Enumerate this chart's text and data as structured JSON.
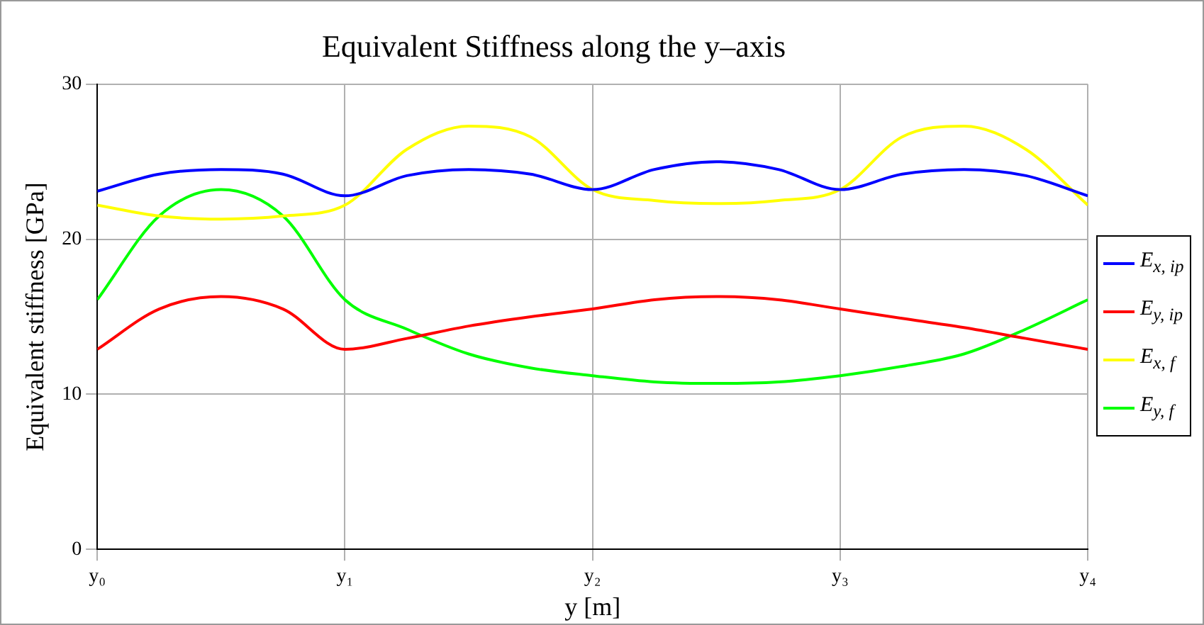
{
  "chart_data": {
    "type": "line",
    "title": "Equivalent Stiffness along the y–axis",
    "xlabel": "y [m]",
    "ylabel": "Equivalent stiffness [GPa]",
    "categories": [
      "y₀",
      null,
      null,
      null,
      "y₁",
      null,
      null,
      null,
      "y₂",
      null,
      null,
      null,
      "y₃",
      null,
      null,
      null,
      "y₄"
    ],
    "ylim": [
      0,
      30
    ],
    "yticks": [
      0,
      10,
      20,
      30
    ],
    "grid": true,
    "legend": "right",
    "marker": "none",
    "line_style": "solid",
    "series": [
      {
        "name": "E$_{x, ip}$",
        "color": "#0000ff",
        "values": [
          23.1,
          24.2,
          24.5,
          24.2,
          22.8,
          24.1,
          24.5,
          24.2,
          23.2,
          24.5,
          25.0,
          24.5,
          23.2,
          24.2,
          24.5,
          24.1,
          22.8
        ]
      },
      {
        "name": "E$_{y, ip}$",
        "color": "#ff0000",
        "values": [
          12.9,
          15.5,
          16.3,
          15.5,
          12.9,
          13.6,
          14.4,
          15.0,
          15.5,
          16.1,
          16.3,
          16.1,
          15.5,
          14.9,
          14.3,
          13.6,
          12.9
        ]
      },
      {
        "name": "E$_{x, f}$",
        "color": "#ffff00",
        "values": [
          22.2,
          21.5,
          21.3,
          21.5,
          22.2,
          25.8,
          27.3,
          26.6,
          23.2,
          22.5,
          22.3,
          22.5,
          23.2,
          26.6,
          27.3,
          25.8,
          22.2
        ]
      },
      {
        "name": "E$_{y, f}$",
        "color": "#00ff00",
        "values": [
          16.1,
          21.5,
          23.2,
          21.5,
          16.1,
          14.2,
          12.6,
          11.7,
          11.2,
          10.8,
          10.7,
          10.8,
          11.2,
          11.8,
          12.6,
          14.2,
          16.1
        ]
      }
    ]
  }
}
